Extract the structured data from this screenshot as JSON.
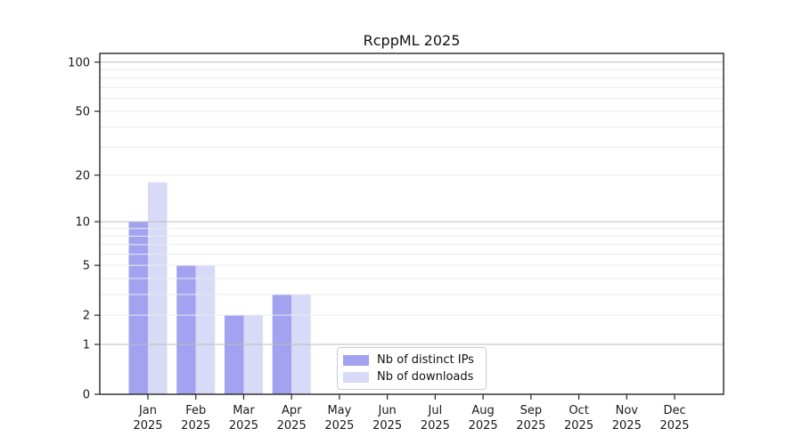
{
  "chart_data": {
    "type": "bar",
    "title": "RcppML 2025",
    "xlabel": "",
    "ylabel": "",
    "categories": [
      "Jan",
      "Feb",
      "Mar",
      "Apr",
      "May",
      "Jun",
      "Jul",
      "Aug",
      "Sep",
      "Oct",
      "Nov",
      "Dec"
    ],
    "category_year": "2025",
    "series": [
      {
        "name": "Nb of distinct IPs",
        "color": "#a2a2f1",
        "values": [
          10,
          5,
          2,
          3,
          0,
          0,
          0,
          0,
          0,
          0,
          0,
          0
        ]
      },
      {
        "name": "Nb of downloads",
        "color": "#d9d9f8",
        "values": [
          18,
          5,
          2,
          3,
          0,
          0,
          0,
          0,
          0,
          0,
          0,
          0
        ]
      }
    ],
    "y_scale": "log1p",
    "y_ticks": [
      0,
      1,
      2,
      5,
      10,
      20,
      50,
      100
    ],
    "ylim": [
      0,
      113
    ],
    "grid": "on",
    "major_gridlines": [
      1,
      10,
      100
    ],
    "minor_gridlines": [
      2,
      3,
      4,
      5,
      6,
      7,
      8,
      9,
      20,
      30,
      40,
      50,
      60,
      70,
      80,
      90
    ],
    "legend_position": "lower center (inside plot)"
  },
  "style": {
    "background": "#ffffff",
    "spine_color": "#262626",
    "tick_text_color": "#191919",
    "major_grid_color": "#bdbdbd",
    "minor_grid_color": "#ececec",
    "legend_border_color": "#cccccc"
  }
}
